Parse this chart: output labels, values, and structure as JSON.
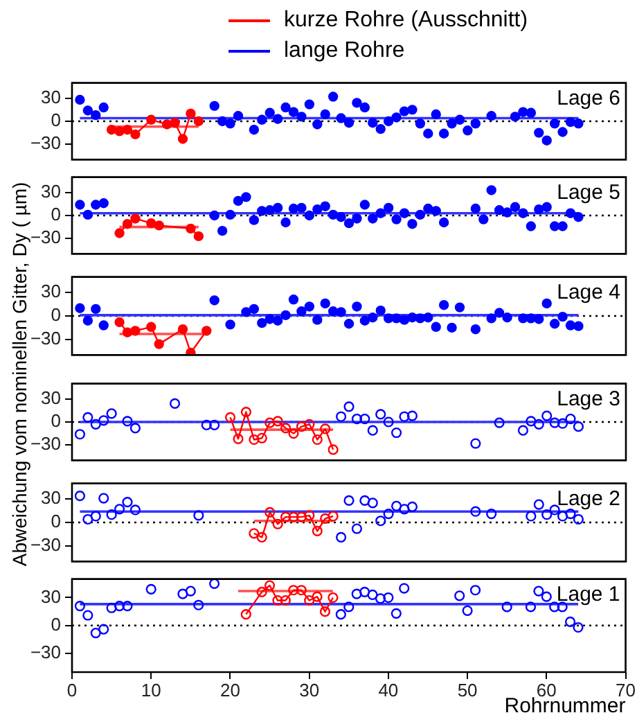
{
  "chart_data": [
    {
      "type": "scatter",
      "title": "Lage 6",
      "ylabel": "Abweichung vom nominellen Gitter,   Dy ( µm)",
      "legend": "top",
      "marker": "circle",
      "grid": false,
      "tick_labels": "y",
      "xlim": [
        0,
        70
      ],
      "xticks": [
        0,
        10,
        20,
        30,
        40,
        50,
        60,
        70
      ],
      "ylim": [
        -50,
        50
      ],
      "yticks": [
        -30,
        0,
        30
      ],
      "ref_lines": [
        {
          "axis": "y",
          "value": 0,
          "line_style": "dotted",
          "color": "#000000"
        }
      ],
      "series": [
        {
          "type": "line",
          "name": "kurze Rohre (Ausschnitt)",
          "color": "#ff0000",
          "x": [
            5,
            6,
            7,
            8,
            10,
            12,
            13,
            14,
            15,
            16
          ],
          "values": [
            -11,
            -13,
            -11,
            -17,
            2,
            -4,
            -2,
            -23,
            10,
            0
          ]
        },
        {
          "type": "scatter",
          "name": "lange Rohre",
          "color": "#0000ff",
          "x": [
            1,
            2,
            3,
            4,
            18,
            19,
            20,
            21,
            23,
            24,
            25,
            26,
            27,
            28,
            29,
            30,
            31,
            32,
            33,
            34,
            35,
            36,
            37,
            38,
            39,
            40,
            41,
            42,
            43,
            44,
            45,
            46,
            47,
            48,
            49,
            50,
            51,
            53,
            56,
            57,
            58,
            59,
            60,
            61,
            62,
            63,
            64
          ],
          "values": [
            28,
            14,
            8,
            18,
            20,
            0,
            -3,
            7,
            -11,
            2,
            11,
            3,
            18,
            12,
            6,
            22,
            -4,
            9,
            32,
            4,
            -2,
            24,
            18,
            -2,
            -10,
            0,
            5,
            13,
            15,
            -3,
            -16,
            9,
            -16,
            -3,
            2,
            -12,
            -3,
            7,
            6,
            12,
            11,
            -15,
            -25,
            -3,
            -14,
            -1,
            -3
          ]
        },
        {
          "type": "line",
          "marker": "none",
          "color": "#3333ff",
          "x": [
            1,
            64
          ],
          "values": [
            4,
            4
          ]
        },
        {
          "type": "line",
          "marker": "none",
          "color": "#ff5050",
          "x": [
            5,
            16
          ],
          "values": [
            -7,
            -7
          ]
        }
      ]
    },
    {
      "type": "scatter",
      "title": "Lage 5",
      "marker": "circle",
      "grid": false,
      "tick_labels": "y",
      "xlim": [
        0,
        70
      ],
      "xticks": [
        0,
        10,
        20,
        30,
        40,
        50,
        60,
        70
      ],
      "ylim": [
        -50,
        50
      ],
      "yticks": [
        -30,
        0,
        30
      ],
      "ref_lines": [
        {
          "axis": "y",
          "value": 0,
          "line_style": "dotted",
          "color": "#000000"
        }
      ],
      "series": [
        {
          "type": "scatter",
          "color": "#0000ff",
          "x": [
            1,
            2,
            3,
            4,
            18,
            19,
            20,
            21,
            22,
            23,
            24,
            25,
            26,
            27,
            28,
            29,
            30,
            31,
            32,
            33,
            34,
            35,
            36,
            37,
            38,
            39,
            40,
            41,
            42,
            43,
            44,
            45,
            46,
            47,
            51,
            52,
            53,
            54,
            55,
            56,
            57,
            58,
            59,
            60,
            61,
            62,
            63,
            64
          ],
          "values": [
            14,
            1,
            14,
            16,
            0,
            -20,
            1,
            19,
            24,
            -6,
            6,
            7,
            10,
            -9,
            9,
            10,
            0,
            8,
            12,
            1,
            -2,
            -10,
            -4,
            14,
            -4,
            3,
            10,
            -5,
            3,
            -11,
            1,
            9,
            6,
            -9,
            9,
            -5,
            33,
            7,
            4,
            11,
            3,
            -14,
            8,
            11,
            -14,
            -14,
            3,
            -2
          ]
        },
        {
          "type": "line",
          "color": "#ff0000",
          "x": [
            6,
            7,
            8,
            10,
            11,
            15,
            16
          ],
          "values": [
            -23,
            -11,
            -4,
            -10,
            -13,
            -17,
            -27
          ]
        },
        {
          "type": "line",
          "marker": "none",
          "color": "#3333ff",
          "x": [
            1,
            64
          ],
          "values": [
            3,
            3
          ]
        },
        {
          "type": "line",
          "marker": "none",
          "color": "#ff5050",
          "x": [
            6,
            16
          ],
          "values": [
            -15,
            -15
          ]
        }
      ]
    },
    {
      "type": "scatter",
      "title": "Lage 4",
      "marker": "circle",
      "grid": false,
      "tick_labels": "y",
      "xlim": [
        0,
        70
      ],
      "xticks": [
        0,
        10,
        20,
        30,
        40,
        50,
        60,
        70
      ],
      "ylim": [
        -50,
        50
      ],
      "yticks": [
        -30,
        0,
        30
      ],
      "ref_lines": [
        {
          "axis": "y",
          "value": 0,
          "line_style": "dotted",
          "color": "#000000"
        }
      ],
      "series": [
        {
          "type": "scatter",
          "color": "#0000ff",
          "x": [
            1,
            2,
            3,
            4,
            18,
            20,
            22,
            23,
            24,
            25,
            26,
            27,
            28,
            29,
            30,
            31,
            32,
            33,
            34,
            35,
            36,
            37,
            38,
            39,
            40,
            41,
            42,
            43,
            44,
            45,
            46,
            47,
            48,
            49,
            51,
            53,
            54,
            55,
            57,
            58,
            59,
            60,
            61,
            62,
            63,
            64
          ],
          "values": [
            10,
            -6,
            9,
            -12,
            20,
            -11,
            5,
            9,
            -9,
            -4,
            -6,
            1,
            21,
            6,
            12,
            -5,
            16,
            6,
            5,
            -10,
            12,
            -6,
            -2,
            7,
            -3,
            -3,
            -5,
            -2,
            -3,
            -2,
            -14,
            14,
            -15,
            11,
            -17,
            -3,
            4,
            -2,
            -3,
            -3,
            -4,
            16,
            -10,
            -1,
            -12,
            -13
          ]
        },
        {
          "type": "line",
          "color": "#ff0000",
          "x": [
            6,
            7,
            8,
            10,
            11,
            14,
            15,
            17
          ],
          "values": [
            -8,
            -21,
            -19,
            -14,
            -36,
            -17,
            -47,
            -19
          ]
        },
        {
          "type": "line",
          "marker": "none",
          "color": "#3333ff",
          "x": [
            1,
            64
          ],
          "values": [
            1,
            1
          ]
        },
        {
          "type": "line",
          "marker": "none",
          "color": "#ff5050",
          "x": [
            6,
            17
          ],
          "values": [
            -23,
            -23
          ]
        }
      ]
    },
    {
      "type": "scatter",
      "title": "Lage 3",
      "marker": "circle",
      "grid": false,
      "tick_labels": "y",
      "xlim": [
        0,
        70
      ],
      "xticks": [
        0,
        10,
        20,
        30,
        40,
        50,
        60,
        70
      ],
      "ylim": [
        -50,
        50
      ],
      "yticks": [
        -30,
        0,
        30
      ],
      "ref_lines": [
        {
          "axis": "y",
          "value": 0,
          "line_style": "dotted",
          "color": "#000000"
        }
      ],
      "series": [
        {
          "type": "scatter",
          "color": "#0000ff",
          "x": [
            1,
            2,
            3,
            4,
            5,
            7,
            8,
            13,
            17,
            18,
            34,
            35,
            36,
            37,
            38,
            39,
            40,
            41,
            42,
            43,
            51,
            54,
            57,
            58,
            59,
            60,
            61,
            62,
            63,
            64
          ],
          "values": [
            -16,
            6,
            -3,
            2,
            11,
            1,
            -8,
            24,
            -4,
            -4,
            7,
            20,
            4,
            4,
            -11,
            10,
            0,
            -14,
            7,
            8,
            -28,
            -1,
            -11,
            1,
            -3,
            8,
            -1,
            -2,
            4,
            -6
          ]
        },
        {
          "type": "line",
          "color": "#ff0000",
          "x": [
            20,
            21,
            22,
            23,
            24,
            25,
            26,
            27,
            28,
            29,
            30,
            31,
            32,
            33
          ],
          "values": [
            6,
            -22,
            13,
            -23,
            -21,
            -1,
            1,
            -8,
            -15,
            -6,
            -3,
            -23,
            -9,
            -36
          ]
        },
        {
          "type": "line",
          "marker": "none",
          "color": "#3333ff",
          "x": [
            1,
            64
          ],
          "values": [
            0,
            0
          ]
        },
        {
          "type": "line",
          "marker": "none",
          "color": "#ff5050",
          "x": [
            20,
            33
          ],
          "values": [
            -10,
            -10
          ]
        }
      ]
    },
    {
      "type": "scatter",
      "title": "Lage 2",
      "marker": "circle",
      "grid": false,
      "tick_labels": "y",
      "xlim": [
        0,
        70
      ],
      "xticks": [
        0,
        10,
        20,
        30,
        40,
        50,
        60,
        70
      ],
      "ylim": [
        -50,
        50
      ],
      "yticks": [
        -30,
        0,
        30
      ],
      "ref_lines": [
        {
          "axis": "y",
          "value": 0,
          "line_style": "dotted",
          "color": "#000000"
        }
      ],
      "series": [
        {
          "type": "scatter",
          "color": "#0000ff",
          "x": [
            1,
            2,
            3,
            4,
            5,
            6,
            7,
            8,
            16,
            34,
            35,
            36,
            37,
            38,
            39,
            40,
            41,
            42,
            43,
            51,
            53,
            58,
            59,
            60,
            61,
            62,
            63,
            64
          ],
          "values": [
            34,
            4,
            8,
            31,
            10,
            17,
            26,
            16,
            9,
            -19,
            28,
            -8,
            28,
            25,
            2,
            11,
            21,
            17,
            20,
            14,
            11,
            8,
            23,
            10,
            16,
            8,
            11,
            4
          ]
        },
        {
          "type": "line",
          "color": "#ff0000",
          "x": [
            23,
            24,
            25,
            26,
            27,
            28,
            29,
            30,
            31,
            32,
            33
          ],
          "values": [
            -14,
            -19,
            13,
            -2,
            7,
            7,
            7,
            9,
            -11,
            5,
            8
          ]
        },
        {
          "type": "line",
          "marker": "none",
          "color": "#3333ff",
          "x": [
            1,
            64
          ],
          "values": [
            14,
            14
          ]
        },
        {
          "type": "line",
          "marker": "none",
          "color": "#ff5050",
          "x": [
            23,
            33
          ],
          "values": [
            2,
            2
          ]
        }
      ]
    },
    {
      "type": "scatter",
      "title": "Lage 1",
      "xlabel": "Rohrnummer",
      "marker": "circle",
      "grid": false,
      "xlim": [
        0,
        70
      ],
      "xticks": [
        0,
        10,
        20,
        30,
        40,
        50,
        60,
        70
      ],
      "ylim": [
        -50,
        50
      ],
      "yticks": [
        -30,
        0,
        30
      ],
      "ref_lines": [
        {
          "axis": "y",
          "value": 0,
          "line_style": "dotted",
          "color": "#000000"
        }
      ],
      "series": [
        {
          "type": "scatter",
          "color": "#0000ff",
          "x": [
            1,
            2,
            3,
            4,
            5,
            6,
            7,
            10,
            14,
            15,
            16,
            18,
            34,
            35,
            36,
            37,
            38,
            39,
            40,
            41,
            42,
            49,
            50,
            51,
            55,
            58,
            59,
            60,
            61,
            62,
            63,
            64
          ],
          "values": [
            21,
            11,
            -8,
            -4,
            19,
            21,
            21,
            39,
            34,
            37,
            22,
            45,
            12,
            20,
            34,
            36,
            33,
            29,
            30,
            13,
            40,
            32,
            16,
            38,
            20,
            20,
            37,
            31,
            20,
            20,
            4,
            -2
          ]
        },
        {
          "type": "line",
          "color": "#ff0000",
          "x": [
            22,
            24,
            25,
            26,
            27,
            28,
            29,
            30,
            31,
            32,
            33
          ],
          "values": [
            12,
            36,
            43,
            27,
            27,
            38,
            38,
            27,
            31,
            15,
            30
          ]
        },
        {
          "type": "line",
          "marker": "none",
          "color": "#3333ff",
          "x": [
            1,
            64
          ],
          "values": [
            23,
            23
          ]
        },
        {
          "type": "line",
          "marker": "none",
          "color": "#ff5050",
          "x": [
            21,
            33
          ],
          "values": [
            37,
            37
          ]
        }
      ]
    }
  ]
}
